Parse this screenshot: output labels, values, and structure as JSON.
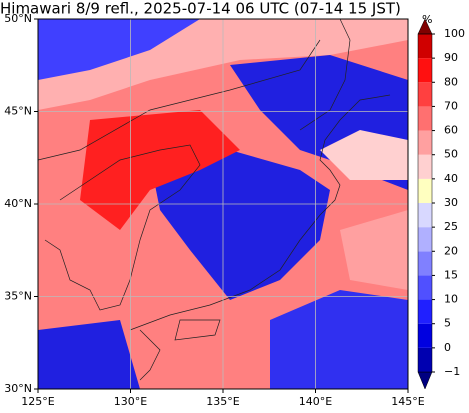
{
  "title": "Himawari 8/9 refl., 2025-07-14 06 UTC (07-14 15 JST)",
  "map": {
    "xlim": [
      125,
      145
    ],
    "ylim": [
      30,
      50
    ],
    "xticks": [
      {
        "value": 125,
        "label": "125°E"
      },
      {
        "value": 130,
        "label": "130°E"
      },
      {
        "value": 135,
        "label": "135°E"
      },
      {
        "value": 140,
        "label": "140°E"
      },
      {
        "value": 145,
        "label": "145°E"
      }
    ],
    "yticks": [
      {
        "value": 30,
        "label": "30°N"
      },
      {
        "value": 35,
        "label": "35°N"
      },
      {
        "value": 40,
        "label": "40°N"
      },
      {
        "value": 45,
        "label": "45°N"
      },
      {
        "value": 50,
        "label": "50°N"
      }
    ]
  },
  "colorbar": {
    "unit": "%",
    "levels": [
      {
        "value": -1,
        "label": "−1"
      },
      0,
      5,
      10,
      15,
      20,
      25,
      30,
      40,
      50,
      60,
      70,
      80,
      90,
      100
    ],
    "colors": [
      "#000080",
      "#0000b0",
      "#0000e0",
      "#2020ff",
      "#5050ff",
      "#8080ff",
      "#b0b0ff",
      "#d8d8ff",
      "#ffffc0",
      "#ffd0d0",
      "#ffa0a0",
      "#ff7070",
      "#ff4040",
      "#ff1010",
      "#d00000",
      "#a00000",
      "#800000"
    ]
  }
}
